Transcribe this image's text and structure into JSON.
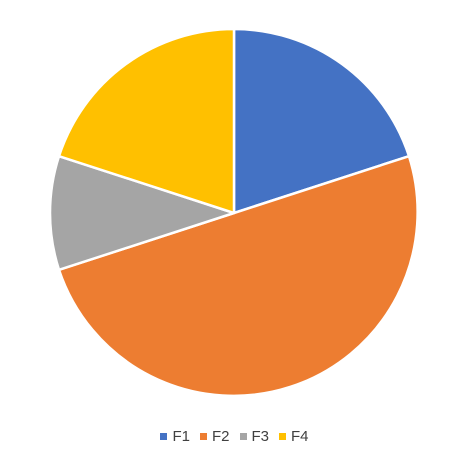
{
  "chart_data": {
    "type": "pie",
    "title": "",
    "legend_position": "bottom",
    "start_angle": "12 o'clock",
    "direction": "clockwise",
    "slices": [
      {
        "label": "F1",
        "value": 20,
        "color": "#4472C4"
      },
      {
        "label": "F2",
        "value": 50,
        "color": "#ED7D31"
      },
      {
        "label": "F3",
        "value": 10,
        "color": "#A5A5A5"
      },
      {
        "label": "F4",
        "value": 20,
        "color": "#FFC000"
      }
    ]
  }
}
